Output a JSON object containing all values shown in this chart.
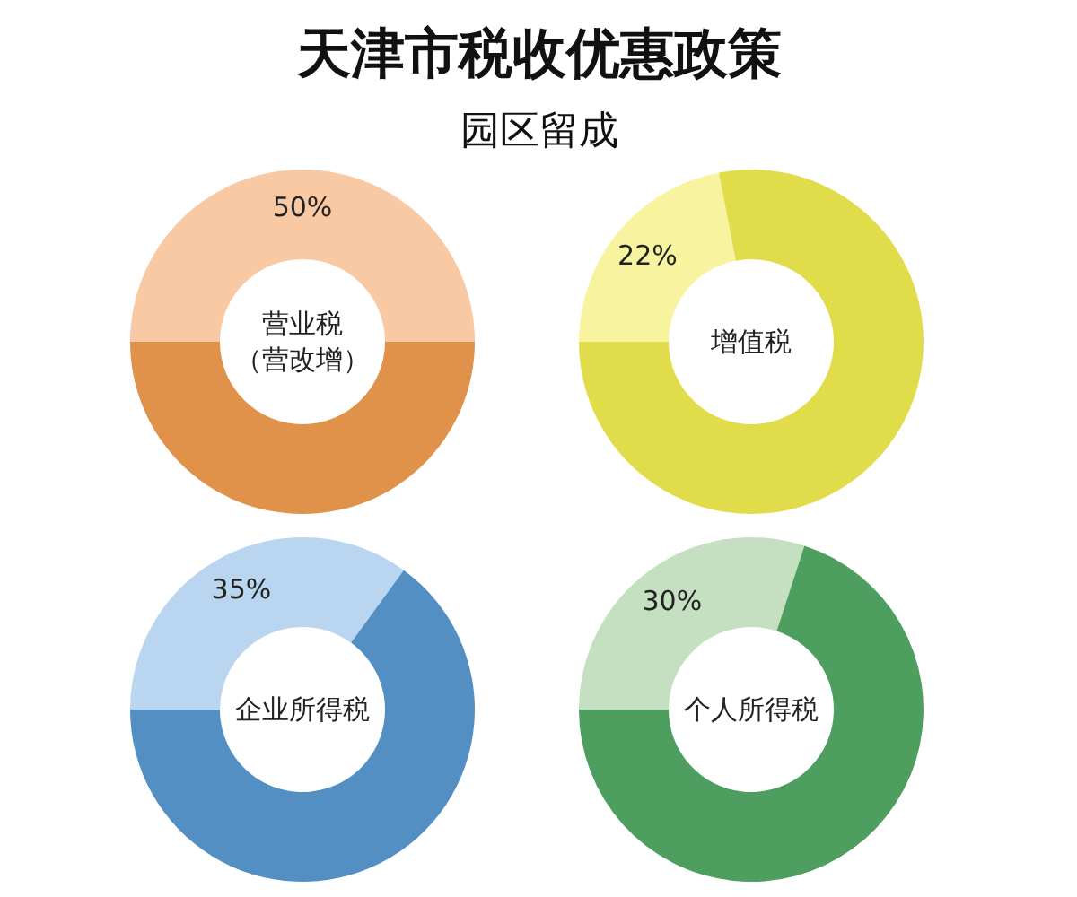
{
  "chart_data": [
    {
      "type": "donut",
      "title": "天津市税收优惠政策",
      "subtitle": "园区留成",
      "annotations": [
        "营业税",
        "（营改增）"
      ],
      "categories": [
        null,
        null
      ],
      "values": [
        50,
        50
      ],
      "colors": [
        "#f9c9a4",
        "#e0914a"
      ],
      "value_labels": [
        "50%",
        null
      ]
    },
    {
      "type": "donut",
      "annotations": [
        "增值税"
      ],
      "categories": [
        null,
        null
      ],
      "values": [
        22,
        78
      ],
      "colors": [
        "#f7f39e",
        "#e0dc4a"
      ],
      "value_labels": [
        "22%",
        null
      ]
    },
    {
      "type": "donut",
      "annotations": [
        "企业所得税"
      ],
      "categories": [
        null,
        null
      ],
      "values": [
        35,
        65
      ],
      "colors": [
        "#bad5ef",
        "#548fc4"
      ],
      "value_labels": [
        "35%",
        null
      ]
    },
    {
      "type": "donut",
      "annotations": [
        "个人所得税"
      ],
      "categories": [
        null,
        null
      ],
      "values": [
        30,
        70
      ],
      "colors": [
        "#c5e0c0",
        "#4e9e5f"
      ],
      "value_labels": [
        "30%",
        null
      ]
    }
  ]
}
